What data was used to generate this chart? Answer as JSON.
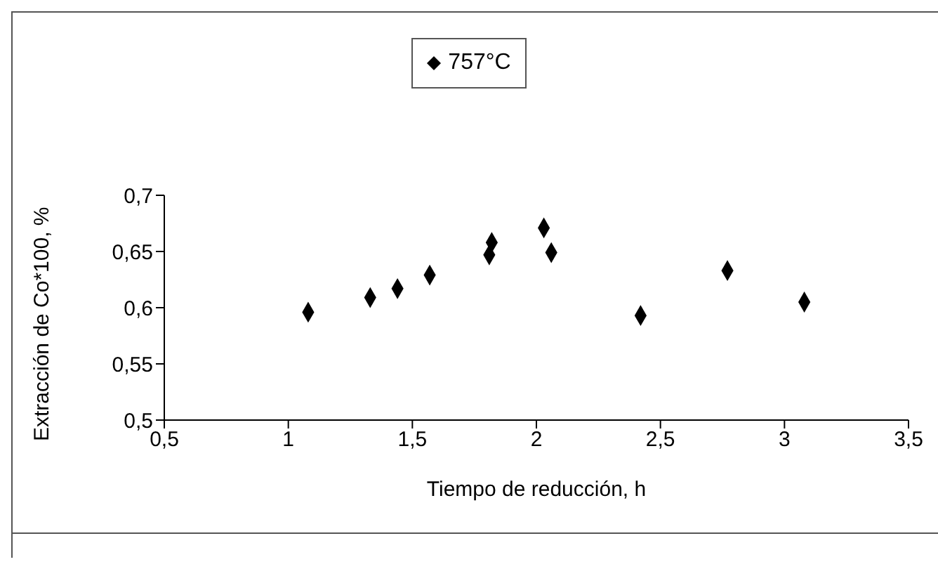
{
  "chart_data": {
    "type": "scatter",
    "xlabel": "Tiempo de reducción, h",
    "ylabel": "Extracción de Co*100, %",
    "x": [
      1.08,
      1.33,
      1.44,
      1.57,
      1.81,
      1.82,
      2.03,
      2.06,
      2.42,
      2.77,
      3.08
    ],
    "series": [
      {
        "name": "757°C",
        "color": "#000000",
        "values": [
          0.596,
          0.609,
          0.617,
          0.629,
          0.647,
          0.658,
          0.671,
          0.649,
          0.593,
          0.633,
          0.605
        ]
      }
    ],
    "xlim": [
      0.5,
      3.5
    ],
    "xticks": [
      {
        "value": 0.5,
        "label": "0,5"
      },
      {
        "value": 1,
        "label": "1"
      },
      {
        "value": 1.5,
        "label": "1,5"
      },
      {
        "value": 2,
        "label": "2"
      },
      {
        "value": 2.5,
        "label": "2,5"
      },
      {
        "value": 3,
        "label": "3"
      },
      {
        "value": 3.5,
        "label": "3,5"
      }
    ],
    "ylim": [
      0.5,
      0.7
    ],
    "yticks": [
      {
        "value": 0.5,
        "label": "0,5"
      },
      {
        "value": 0.55,
        "label": "0,55"
      },
      {
        "value": 0.6,
        "label": "0,6"
      },
      {
        "value": 0.65,
        "label": "0,65"
      },
      {
        "value": 0.7,
        "label": "0,7"
      }
    ],
    "marker": "diamond",
    "legend": "top",
    "grid": false
  }
}
